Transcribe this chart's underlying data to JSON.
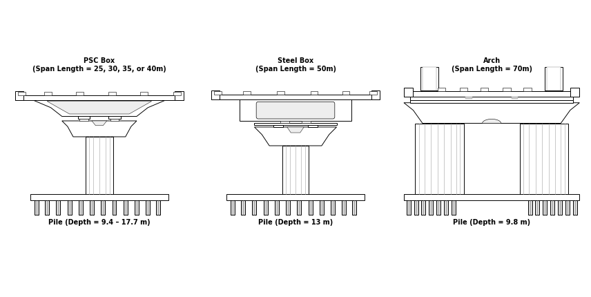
{
  "title_psc": "PSC Box\n(Span Length = 25, 30, 35, or 40m)",
  "title_steel": "Steel Box\n(Span Length = 50m)",
  "title_arch": "Arch\n(Span Length = 70m)",
  "label_psc": "Pile (Depth = 9.4 – 17.7 m)",
  "label_steel": "Pile (Depth = 13 m)",
  "label_arch": "Pile (Depth = 9.8 m)",
  "bg_color": "#ffffff",
  "line_color": "#000000",
  "fill_color": "#ffffff",
  "gray_fill": "#d8d8d8",
  "dark_gray": "#555555"
}
